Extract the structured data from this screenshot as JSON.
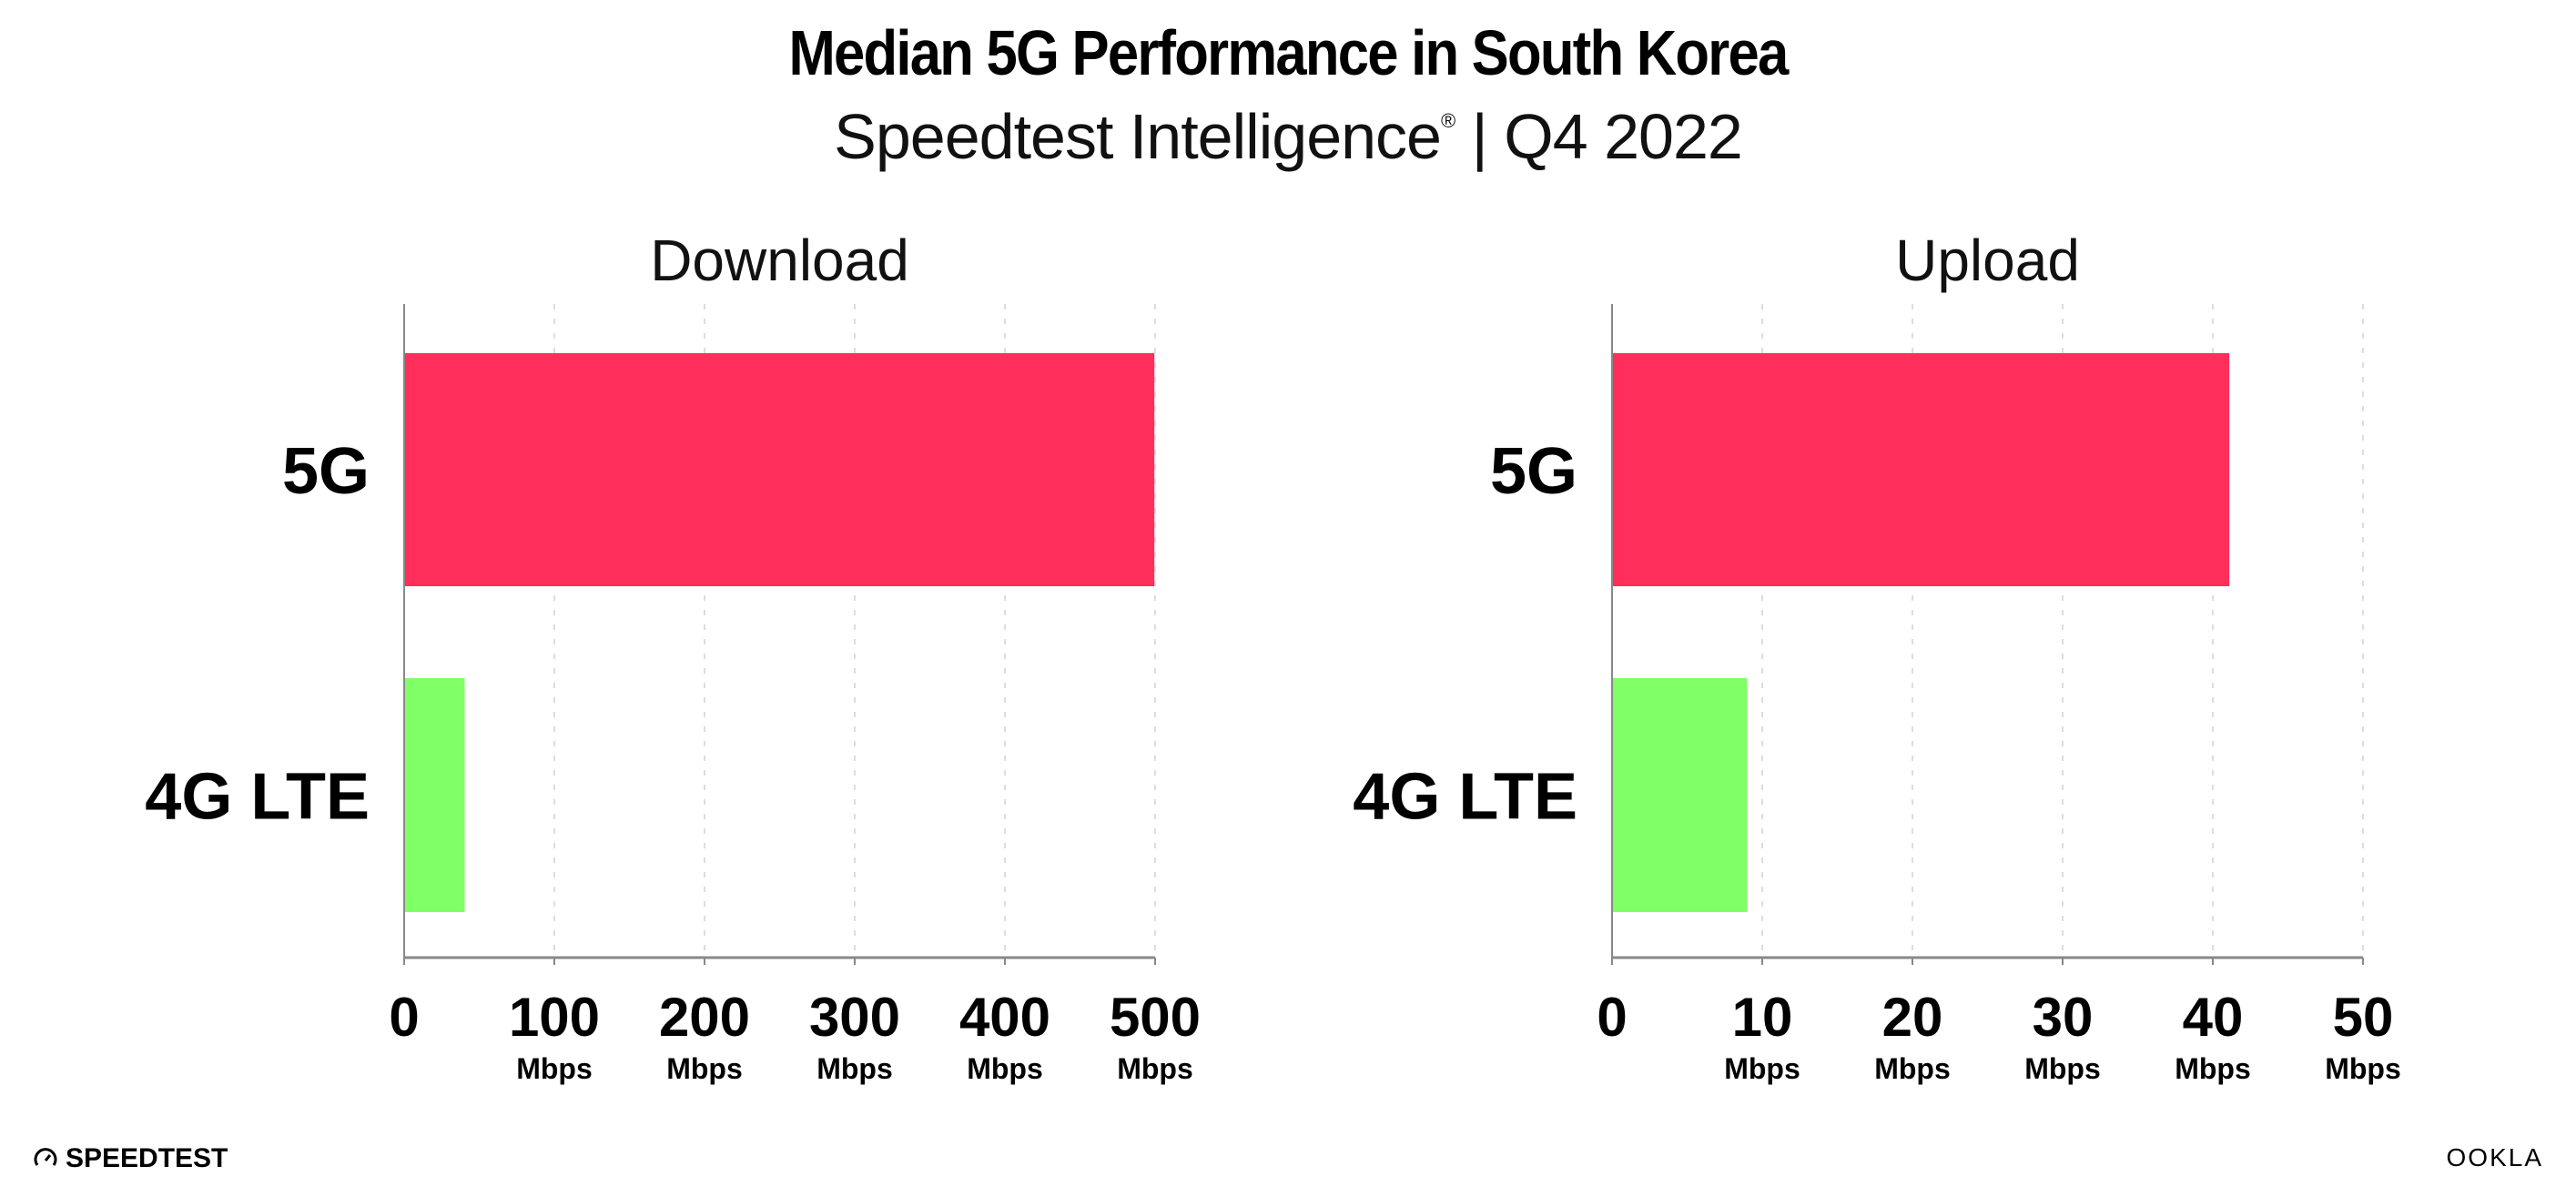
{
  "header": {
    "title": "Median 5G Performance in South Korea",
    "subtitle_main": "Speedtest Intelligence",
    "subtitle_mark": "®",
    "subtitle_period": " | Q4 2022"
  },
  "chart_data": [
    {
      "type": "bar",
      "orientation": "horizontal",
      "title": "Download",
      "categories": [
        "5G",
        "4G LTE"
      ],
      "values": [
        499.5,
        40.3
      ],
      "colors": [
        "#ff2e5b",
        "#80ff66"
      ],
      "xlim": [
        0,
        500
      ],
      "ticks": [
        "0",
        "100",
        "200",
        "300",
        "400",
        "500"
      ],
      "tick_values": [
        0,
        100,
        200,
        300,
        400,
        500
      ],
      "unit": "Mbps",
      "grid": true
    },
    {
      "type": "bar",
      "orientation": "horizontal",
      "title": "Upload",
      "categories": [
        "5G",
        "4G LTE"
      ],
      "values": [
        41.1,
        9.0
      ],
      "colors": [
        "#ff2e5b",
        "#80ff66"
      ],
      "xlim": [
        0,
        50
      ],
      "ticks": [
        "0",
        "10",
        "20",
        "30",
        "40",
        "50"
      ],
      "tick_values": [
        0,
        10,
        20,
        30,
        40,
        50
      ],
      "unit": "Mbps",
      "grid": true
    }
  ],
  "footer": {
    "left_logo": "SPEEDTEST",
    "right_logo": "OOKLA"
  }
}
